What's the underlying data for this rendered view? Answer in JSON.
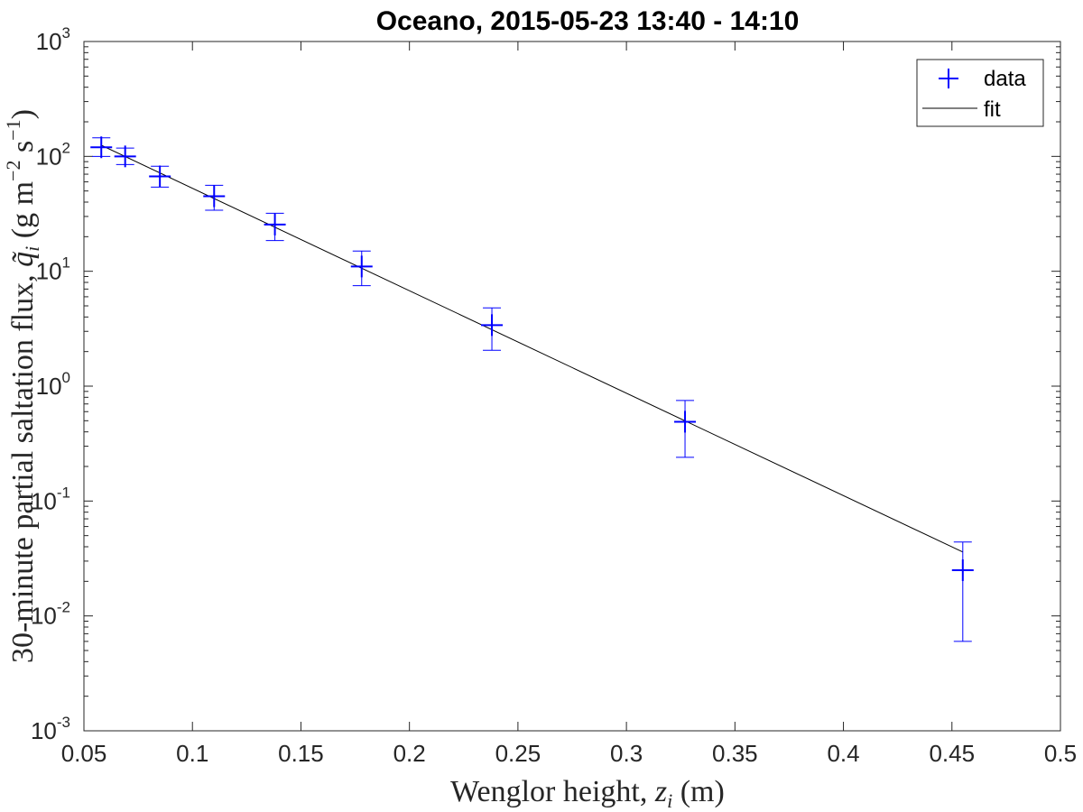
{
  "chart_data": {
    "type": "scatter",
    "title": "Oceano, 2015-05-23 13:40 - 14:10",
    "xlabel": {
      "prefix": "Wenglor height, ",
      "var": "z",
      "sub": "i",
      "suffix": " (m)"
    },
    "ylabel": {
      "prefix": "30-minute partial saltation flux, ",
      "var": "q̃",
      "sub": "i",
      "units_open": " (g m",
      "exp1": "−2",
      "units_mid": " s",
      "exp2": "−1",
      "units_close": ")"
    },
    "xlim": [
      0.05,
      0.5
    ],
    "ylim": [
      0.001,
      1000
    ],
    "yscale": "log",
    "grid": false,
    "x_ticks": [
      "0.05",
      "0.1",
      "0.15",
      "0.2",
      "0.25",
      "0.3",
      "0.35",
      "0.4",
      "0.45",
      "0.5"
    ],
    "y_ticks": [
      {
        "base": "10",
        "exp": "-3",
        "value": 0.001
      },
      {
        "base": "10",
        "exp": "-2",
        "value": 0.01
      },
      {
        "base": "10",
        "exp": "-1",
        "value": 0.1
      },
      {
        "base": "10",
        "exp": "0",
        "value": 1
      },
      {
        "base": "10",
        "exp": "1",
        "value": 10
      },
      {
        "base": "10",
        "exp": "2",
        "value": 100
      },
      {
        "base": "10",
        "exp": "3",
        "value": 1000
      }
    ],
    "legend": {
      "placement": "top-right",
      "entries": [
        {
          "label": "data",
          "marker": "plus",
          "color": "#0000ff"
        },
        {
          "label": "fit",
          "line": "solid",
          "color": "#000000"
        }
      ]
    },
    "series": [
      {
        "name": "data",
        "color": "#0000ff",
        "x": [
          0.058,
          0.069,
          0.085,
          0.11,
          0.138,
          0.178,
          0.238,
          0.327,
          0.455
        ],
        "y": [
          120,
          100,
          67,
          45,
          25.5,
          11,
          3.4,
          0.49,
          0.025
        ],
        "y_err_low": [
          100,
          85,
          54,
          34,
          18.5,
          7.5,
          2.05,
          0.24,
          0.006
        ],
        "y_err_high": [
          145,
          118,
          82,
          56,
          32,
          15,
          4.8,
          0.75,
          0.044
        ]
      },
      {
        "name": "fit",
        "color": "#000000",
        "x": [
          0.058,
          0.455
        ],
        "y": [
          125,
          0.036
        ]
      }
    ]
  }
}
